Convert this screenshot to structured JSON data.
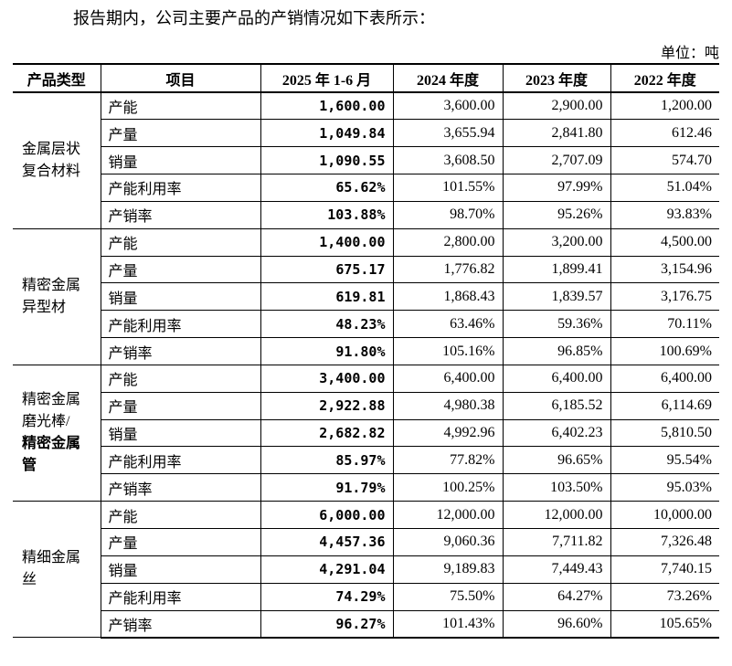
{
  "intro": "报告期内，公司主要产品的产销情况如下表所示：",
  "unit": "单位：吨",
  "table": {
    "header": [
      "产品类型",
      "项目",
      "2025 年 1-6 月",
      "2024 年度",
      "2023 年度",
      "2022 年度"
    ],
    "groups": [
      {
        "type_lines": [
          "金属层状",
          "复合材料"
        ],
        "rows": [
          [
            "产能",
            "1,600.00",
            "3,600.00",
            "2,900.00",
            "1,200.00"
          ],
          [
            "产量",
            "1,049.84",
            "3,655.94",
            "2,841.80",
            "612.46"
          ],
          [
            "销量",
            "1,090.55",
            "3,608.50",
            "2,707.09",
            "574.70"
          ],
          [
            "产能利用率",
            "65.62%",
            "101.55%",
            "97.99%",
            "51.04%"
          ],
          [
            "产销率",
            "103.88%",
            "98.70%",
            "95.26%",
            "93.83%"
          ]
        ]
      },
      {
        "type_lines": [
          "精密金属",
          "异型材"
        ],
        "rows": [
          [
            "产能",
            "1,400.00",
            "2,800.00",
            "3,200.00",
            "4,500.00"
          ],
          [
            "产量",
            "675.17",
            "1,776.82",
            "1,899.41",
            "3,154.96"
          ],
          [
            "销量",
            "619.81",
            "1,868.43",
            "1,839.57",
            "3,176.75"
          ],
          [
            "产能利用率",
            "48.23%",
            "63.46%",
            "59.36%",
            "70.11%"
          ],
          [
            "产销率",
            "91.80%",
            "105.16%",
            "96.85%",
            "100.69%"
          ]
        ]
      },
      {
        "type_lines": [
          "精密金属",
          "磨光棒/",
          "精密金属",
          "管"
        ],
        "rows": [
          [
            "产能",
            "3,400.00",
            "6,400.00",
            "6,400.00",
            "6,400.00"
          ],
          [
            "产量",
            "2,922.88",
            "4,980.38",
            "6,185.52",
            "6,114.69"
          ],
          [
            "销量",
            "2,682.82",
            "4,992.96",
            "6,402.23",
            "5,810.50"
          ],
          [
            "产能利用率",
            "85.97%",
            "77.82%",
            "96.65%",
            "95.54%"
          ],
          [
            "产销率",
            "91.79%",
            "100.25%",
            "103.50%",
            "95.03%"
          ]
        ]
      },
      {
        "type_lines": [
          "精细金属",
          "丝"
        ],
        "rows": [
          [
            "产能",
            "6,000.00",
            "12,000.00",
            "12,000.00",
            "10,000.00"
          ],
          [
            "产量",
            "4,457.36",
            "9,060.36",
            "7,711.82",
            "7,326.48"
          ],
          [
            "销量",
            "4,291.04",
            "9,189.83",
            "7,449.43",
            "7,740.15"
          ],
          [
            "产能利用率",
            "74.29%",
            "75.50%",
            "64.27%",
            "73.26%"
          ],
          [
            "产销率",
            "96.27%",
            "101.43%",
            "96.60%",
            "105.65%"
          ]
        ]
      }
    ]
  }
}
